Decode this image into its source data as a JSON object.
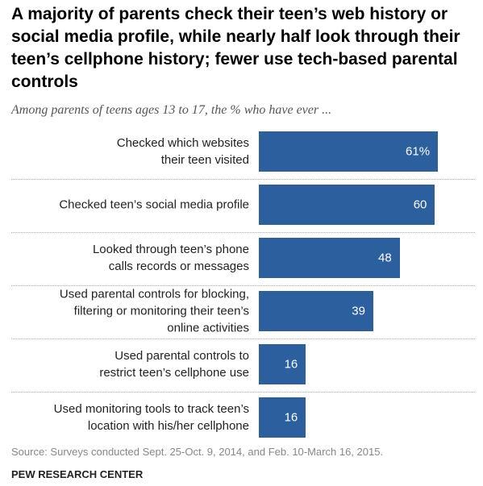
{
  "chart_data": {
    "type": "bar",
    "orientation": "horizontal",
    "title": "A majority of parents check their teen’s web history or social media profile, while nearly half look through their teen’s cellphone history; fewer use tech-based parental controls",
    "subtitle": "Among parents of teens ages 13 to 17, the % who have ever ...",
    "categories": [
      "Checked which websites\ntheir teen visited",
      "Checked teen’s social media profile",
      "Looked through teen’s phone\ncalls records or messages",
      "Used parental controls for blocking,\nfiltering or monitoring their teen’s\nonline activities",
      "Used parental controls to\nrestrict teen’s cellphone use",
      "Used monitoring tools to track teen’s\nlocation with his/her cellphone"
    ],
    "values": [
      61,
      60,
      48,
      39,
      16,
      16
    ],
    "value_labels": [
      "61%",
      "60",
      "48",
      "39",
      "16",
      "16"
    ],
    "color": "#2b5f9e",
    "source": "Source: Surveys conducted Sept. 25-Oct. 9, 2014, and Feb. 10-March 16, 2015.",
    "credit": "PEW RESEARCH CENTER"
  }
}
